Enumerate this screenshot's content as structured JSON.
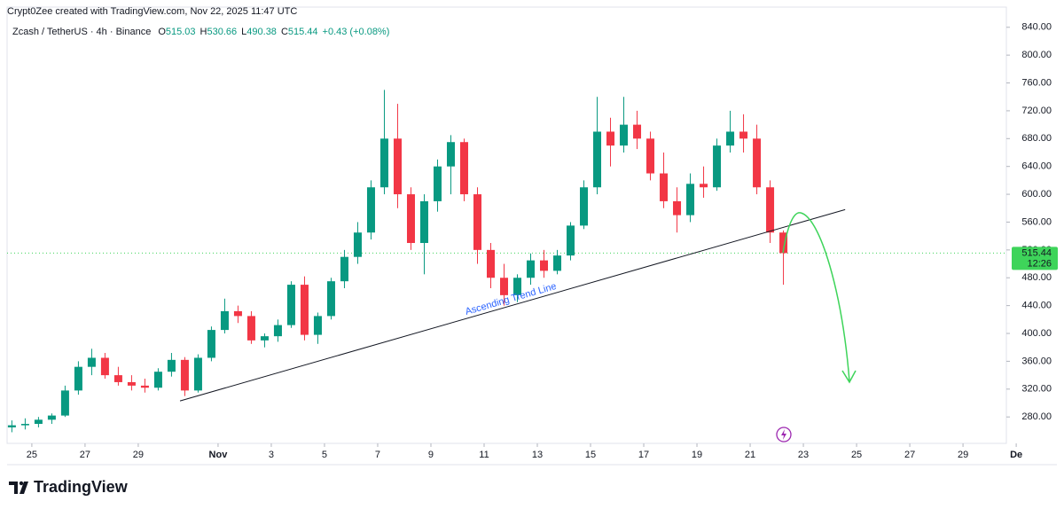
{
  "chart_data": {
    "type": "candlestick",
    "attribution": "Crypt0Zee created with TradingView.com, Nov 22, 2025 11:47 UTC",
    "symbol": "Zcash / TetherUS · 4h · Binance",
    "ohlc_legend": [
      {
        "label": "O",
        "value": 515.03
      },
      {
        "label": "H",
        "value": 530.66
      },
      {
        "label": "L",
        "value": 490.38
      },
      {
        "label": "C",
        "value": 515.44
      }
    ],
    "change": "+0.43 (+0.08%)",
    "brand": "TradingView",
    "up_color": "#089981",
    "down_color": "#f23645",
    "last_price": 515.44,
    "countdown": "12:26",
    "last_price_color": "#3ed45a",
    "xlim": [
      24.07,
      61.63
    ],
    "ylim": [
      242,
      869
    ],
    "xticks": [
      25,
      27,
      29,
      {
        "value": 32,
        "label": "Nov"
      },
      {
        "value": 34,
        "label": "3"
      },
      {
        "value": 36,
        "label": "5"
      },
      {
        "value": 38,
        "label": "7"
      },
      {
        "value": 40,
        "label": "9"
      },
      {
        "value": 42,
        "label": "11"
      },
      {
        "value": 44,
        "label": "13"
      },
      {
        "value": 46,
        "label": "15"
      },
      {
        "value": 48,
        "label": "17"
      },
      {
        "value": 50,
        "label": "19"
      },
      {
        "value": 52,
        "label": "21"
      },
      {
        "value": 54,
        "label": "23"
      },
      {
        "value": 56,
        "label": "25"
      },
      {
        "value": 58,
        "label": "27"
      },
      {
        "value": 60,
        "label": "29"
      },
      {
        "value": 62,
        "label": "De"
      }
    ],
    "yticks": [
      {
        "value": 280,
        "label": "280.00"
      },
      {
        "value": 320,
        "label": "320.00"
      },
      {
        "value": 360,
        "label": "360.00"
      },
      {
        "value": 400,
        "label": "400.00"
      },
      {
        "value": 440,
        "label": "440.00"
      },
      {
        "value": 480,
        "label": "480.00"
      },
      {
        "value": 520,
        "label": "520.00"
      },
      {
        "value": 560,
        "label": "560.00"
      },
      {
        "value": 600,
        "label": "600.00"
      },
      {
        "value": 640,
        "label": "640.00"
      },
      {
        "value": 680,
        "label": "680.00"
      },
      {
        "value": 720,
        "label": "720.00"
      },
      {
        "value": 760,
        "label": "760.00"
      },
      {
        "value": 800,
        "label": "800.00"
      },
      {
        "value": 840,
        "label": "840.00"
      }
    ],
    "x": [
      24.25,
      24.75,
      25.25,
      25.75,
      26.25,
      26.75,
      27.25,
      27.75,
      28.25,
      28.75,
      29.25,
      29.75,
      30.25,
      30.75,
      31.25,
      31.75,
      32.25,
      32.75,
      33.25,
      33.75,
      34.25,
      34.75,
      35.25,
      35.75,
      36.25,
      36.75,
      37.25,
      37.75,
      38.25,
      38.75,
      39.25,
      39.75,
      40.25,
      40.75,
      41.25,
      41.75,
      42.25,
      42.75,
      43.25,
      43.75,
      44.25,
      44.75,
      45.25,
      45.75,
      46.25,
      46.75,
      47.25,
      47.75,
      48.25,
      48.75,
      49.25,
      49.75,
      50.25,
      50.75,
      51.25,
      51.75,
      52.25,
      52.75,
      53.25
    ],
    "open": [
      265,
      268,
      270,
      276,
      282,
      318,
      352,
      365,
      340,
      330,
      325,
      322,
      345,
      362,
      318,
      365,
      405,
      432,
      425,
      390,
      396,
      412,
      470,
      398,
      425,
      475,
      510,
      545,
      610,
      680,
      600,
      530,
      590,
      640,
      675,
      600,
      520,
      480,
      455,
      480,
      505,
      490,
      512,
      555,
      610,
      690,
      670,
      700,
      680,
      630,
      590,
      570,
      615,
      610,
      670,
      690,
      680,
      610,
      545
    ],
    "high": [
      275,
      278,
      280,
      285,
      325,
      360,
      378,
      372,
      352,
      340,
      335,
      350,
      372,
      366,
      370,
      410,
      450,
      440,
      432,
      400,
      420,
      475,
      482,
      430,
      480,
      520,
      560,
      620,
      750,
      730,
      610,
      600,
      650,
      685,
      680,
      610,
      530,
      500,
      485,
      515,
      520,
      520,
      560,
      620,
      740,
      710,
      740,
      720,
      690,
      660,
      610,
      630,
      640,
      680,
      720,
      715,
      700,
      620,
      548
    ],
    "low": [
      258,
      262,
      265,
      270,
      280,
      312,
      340,
      335,
      325,
      318,
      315,
      318,
      338,
      310,
      315,
      360,
      400,
      415,
      385,
      380,
      388,
      408,
      390,
      385,
      420,
      465,
      500,
      535,
      600,
      580,
      520,
      485,
      575,
      600,
      590,
      500,
      465,
      440,
      445,
      470,
      480,
      485,
      505,
      550,
      600,
      640,
      660,
      665,
      620,
      580,
      545,
      560,
      595,
      605,
      660,
      660,
      600,
      530,
      470
    ],
    "close": [
      268,
      270,
      276,
      282,
      318,
      352,
      365,
      340,
      330,
      325,
      322,
      345,
      362,
      318,
      365,
      405,
      432,
      425,
      390,
      396,
      412,
      470,
      398,
      425,
      475,
      510,
      545,
      610,
      680,
      600,
      530,
      590,
      640,
      675,
      600,
      520,
      480,
      455,
      480,
      505,
      490,
      512,
      555,
      610,
      690,
      670,
      700,
      680,
      630,
      590,
      570,
      615,
      610,
      670,
      690,
      680,
      610,
      545,
      515.44
    ],
    "trend_line": {
      "label": "Ascending Trend Line",
      "x": [
        30.57,
        55.57
      ],
      "y": [
        303,
        578
      ],
      "color": "#131722",
      "label_color": "#2962ff"
    }
  }
}
